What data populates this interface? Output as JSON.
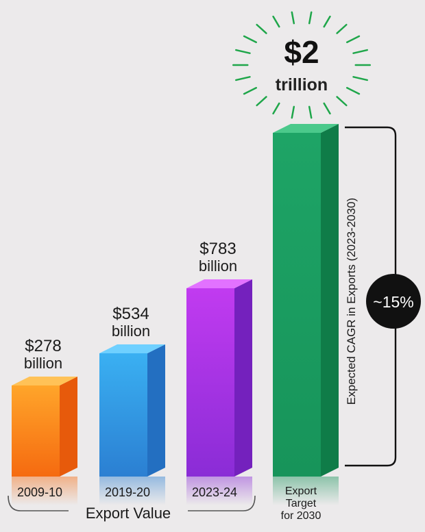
{
  "chart_data": {
    "type": "bar",
    "title": "",
    "title_fragment": "",
    "categories": [
      "2009-10",
      "2019-20",
      "2023-24",
      "Export Target for 2030"
    ],
    "category_lines": [
      [
        "2009-10"
      ],
      [
        "2019-20"
      ],
      [
        "2023-24"
      ],
      [
        "Export",
        "Target",
        "for 2030"
      ]
    ],
    "values_billion_usd": [
      278,
      534,
      783,
      2000
    ],
    "value_labels": [
      [
        "$278",
        "billion"
      ],
      [
        "$534",
        "billion"
      ],
      [
        "$783",
        "billion"
      ],
      [
        "$2",
        "trillion"
      ]
    ],
    "bar_colors": [
      {
        "front_top": "#ffa52a",
        "front_bottom": "#f56a10",
        "side": "#e75a0b",
        "top": "#ffc257"
      },
      {
        "front_top": "#3ab0f2",
        "front_bottom": "#2b7fd2",
        "side": "#236fc1",
        "top": "#6fd0ff"
      },
      {
        "front_top": "#c13bf0",
        "front_bottom": "#8a2cd6",
        "side": "#7421bd",
        "top": "#e272ff"
      },
      {
        "front_top": "#1ea466",
        "front_bottom": "#17945a",
        "side": "#0f7c48",
        "top": "#4bc98b"
      }
    ],
    "burst_color": "#1fa64a",
    "group_label": "Export Value",
    "cagr_label": "Expected CAGR in Exports (2023-2030)",
    "cagr_value": "~15%",
    "grid": false,
    "legend": "none"
  }
}
